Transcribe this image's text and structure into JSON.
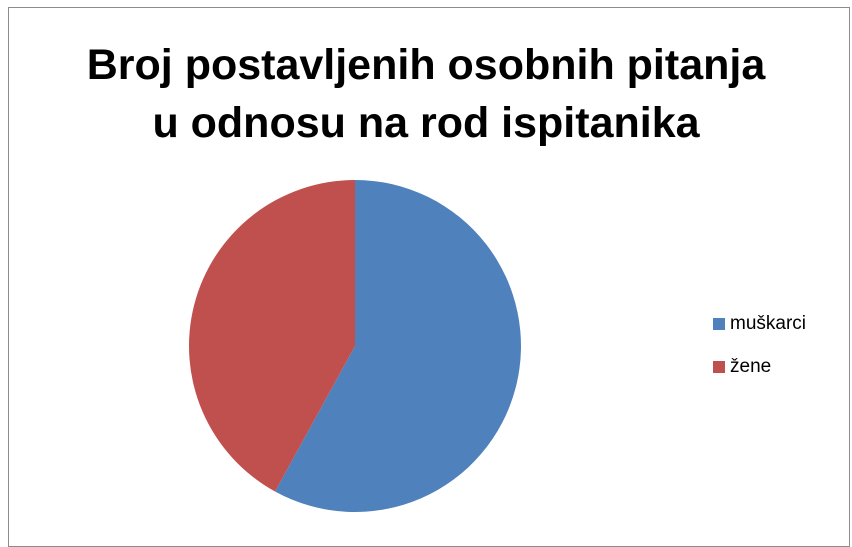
{
  "chart_data": {
    "type": "pie",
    "title_lines": [
      "Broj postavljenih osobnih pitanja",
      "u odnosu na rod ispitanika"
    ],
    "categories": [
      "muškarci",
      "žene"
    ],
    "values": [
      58,
      42
    ],
    "colors": [
      "#4f81bd",
      "#c0504d"
    ],
    "start_angle_deg": 0,
    "direction": "clockwise",
    "legend_placement": "right"
  }
}
